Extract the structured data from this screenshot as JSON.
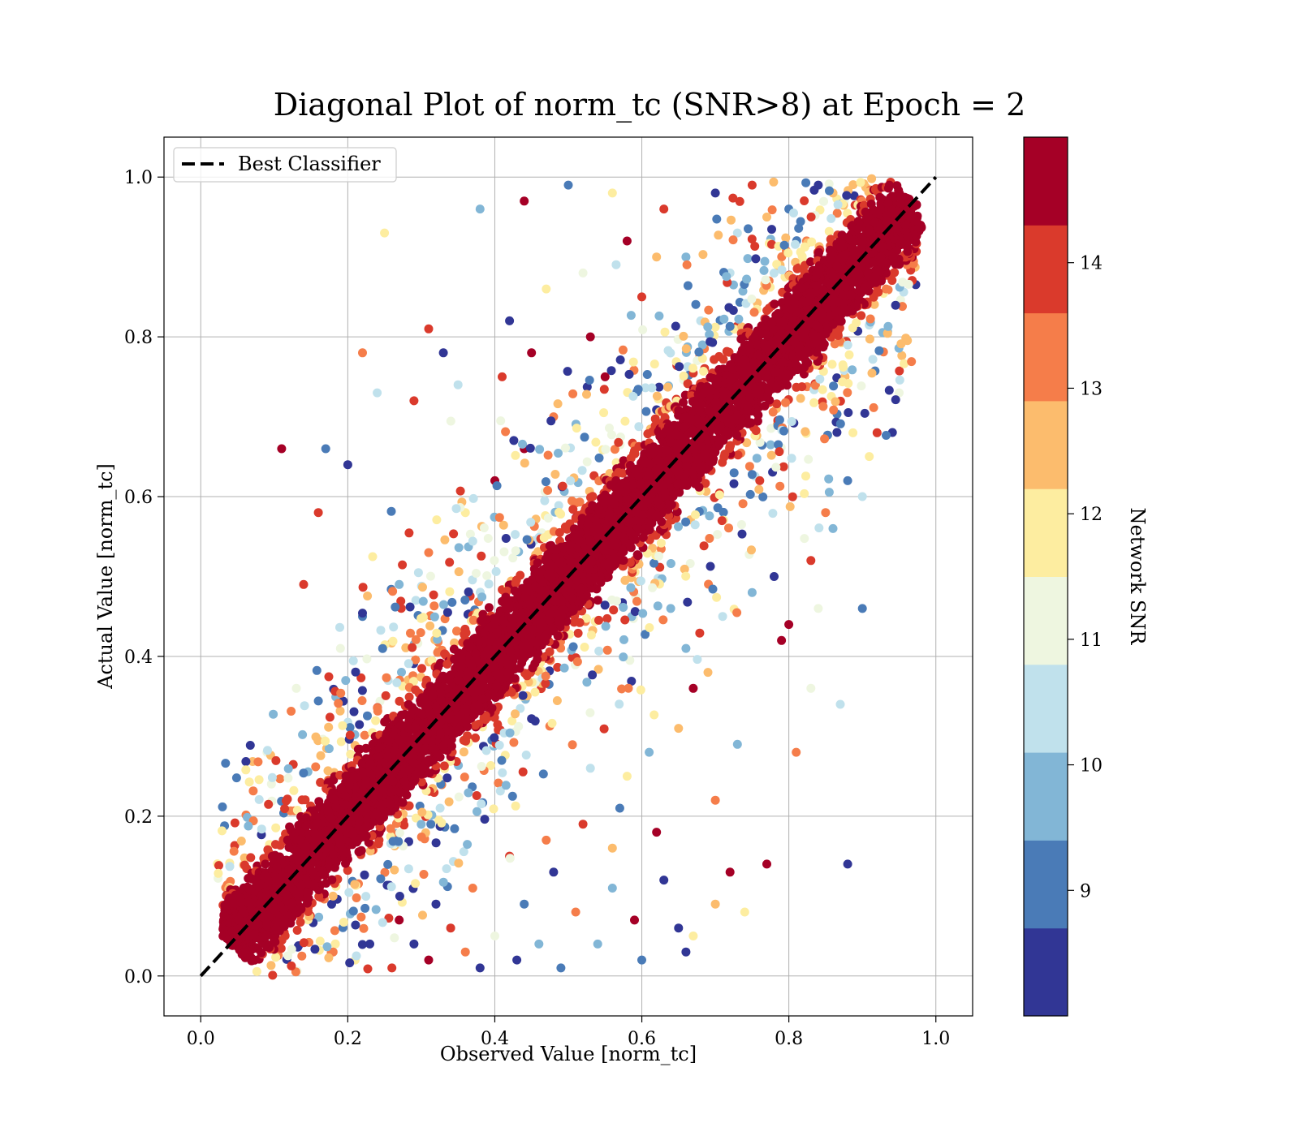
{
  "chart_data": {
    "type": "scatter",
    "title": "Diagonal Plot of norm_tc (SNR>8) at Epoch = 2",
    "xlabel": "Observed Value [norm_tc]",
    "ylabel": "Actual Value [norm_tc]",
    "xlim": [
      -0.05,
      1.05
    ],
    "ylim": [
      -0.05,
      1.05
    ],
    "xticks": [
      "0.0",
      "0.2",
      "0.4",
      "0.6",
      "0.8",
      "1.0"
    ],
    "yticks": [
      "0.0",
      "0.2",
      "0.4",
      "0.6",
      "0.8",
      "1.0"
    ],
    "grid": true,
    "legend": {
      "placement": "upper-left",
      "entries": [
        {
          "label": "Best Classifier",
          "style": "dashed",
          "color": "#000000"
        }
      ]
    },
    "reference_line": {
      "x": [
        0.0,
        1.0
      ],
      "y": [
        0.0,
        1.0
      ],
      "style": "dashed",
      "color": "#000000"
    },
    "colorbar": {
      "label": "Network SNR",
      "range": [
        8,
        15
      ],
      "ticks": [
        "9",
        "10",
        "11",
        "12",
        "13",
        "14"
      ],
      "tick_values": [
        9,
        10,
        11,
        12,
        13,
        14
      ],
      "colors": [
        "#313695",
        "#4575b4",
        "#74add1",
        "#abd9e9",
        "#e0f3f8",
        "#fee090",
        "#fdae61",
        "#f46d43",
        "#d73027",
        "#a50026"
      ],
      "displayed_colors": [
        "#313695",
        "#4a7bb7",
        "#82b6d6",
        "#c0e1ec",
        "#eef6e0",
        "#fdeda0",
        "#fcbc6d",
        "#f57d4a",
        "#da3a2c",
        "#a50026"
      ]
    },
    "series": [
      {
        "description_points": [
          [
            0.06,
            0.02
          ],
          [
            0.1,
            0.06
          ],
          [
            0.15,
            0.12
          ],
          [
            0.2,
            0.18
          ],
          [
            0.25,
            0.23
          ],
          [
            0.3,
            0.28
          ],
          [
            0.35,
            0.33
          ],
          [
            0.4,
            0.38
          ],
          [
            0.45,
            0.44
          ],
          [
            0.5,
            0.49
          ],
          [
            0.55,
            0.54
          ],
          [
            0.6,
            0.59
          ],
          [
            0.65,
            0.64
          ],
          [
            0.7,
            0.69
          ],
          [
            0.75,
            0.74
          ],
          [
            0.8,
            0.79
          ],
          [
            0.85,
            0.85
          ],
          [
            0.9,
            0.89
          ],
          [
            0.95,
            0.96
          ],
          [
            0.08,
            0.14
          ],
          [
            0.12,
            0.2
          ],
          [
            0.18,
            0.27
          ],
          [
            0.28,
            0.37
          ],
          [
            0.38,
            0.47
          ],
          [
            0.48,
            0.56
          ],
          [
            0.58,
            0.66
          ],
          [
            0.68,
            0.76
          ],
          [
            0.78,
            0.87
          ],
          [
            0.88,
            0.97
          ],
          [
            0.1,
            0.01
          ],
          [
            0.2,
            0.1
          ],
          [
            0.3,
            0.19
          ],
          [
            0.4,
            0.29
          ],
          [
            0.5,
            0.39
          ],
          [
            0.6,
            0.5
          ],
          [
            0.7,
            0.6
          ],
          [
            0.8,
            0.7
          ],
          [
            0.9,
            0.81
          ],
          [
            0.96,
            0.88
          ]
        ],
        "outliers": [
          [
            0.25,
            0.93
          ],
          [
            0.38,
            0.96
          ],
          [
            0.44,
            0.97
          ],
          [
            0.42,
            0.82
          ],
          [
            0.33,
            0.78
          ],
          [
            0.22,
            0.78
          ],
          [
            0.31,
            0.81
          ],
          [
            0.11,
            0.66
          ],
          [
            0.17,
            0.66
          ],
          [
            0.2,
            0.64
          ],
          [
            0.16,
            0.58
          ],
          [
            0.14,
            0.49
          ],
          [
            0.24,
            0.73
          ],
          [
            0.35,
            0.74
          ],
          [
            0.29,
            0.72
          ],
          [
            0.41,
            0.75
          ],
          [
            0.47,
            0.86
          ],
          [
            0.5,
            0.99
          ],
          [
            0.56,
            0.98
          ],
          [
            0.63,
            0.96
          ],
          [
            0.7,
            0.98
          ],
          [
            0.75,
            0.99
          ],
          [
            0.66,
            0.9
          ],
          [
            0.58,
            0.92
          ],
          [
            0.6,
            0.85
          ],
          [
            0.52,
            0.88
          ],
          [
            0.68,
            0.82
          ],
          [
            0.73,
            0.93
          ],
          [
            0.8,
            0.96
          ],
          [
            0.86,
            0.98
          ],
          [
            0.55,
            0.75
          ],
          [
            0.48,
            0.7
          ],
          [
            0.44,
            0.66
          ],
          [
            0.4,
            0.62
          ],
          [
            0.36,
            0.58
          ],
          [
            0.31,
            0.53
          ],
          [
            0.27,
            0.49
          ],
          [
            0.22,
            0.45
          ],
          [
            0.19,
            0.41
          ],
          [
            0.13,
            0.36
          ],
          [
            0.09,
            0.28
          ],
          [
            0.45,
            0.78
          ],
          [
            0.53,
            0.8
          ],
          [
            0.62,
            0.9
          ],
          [
            0.72,
            0.88
          ],
          [
            0.77,
            0.95
          ],
          [
            0.84,
            0.99
          ],
          [
            0.9,
            0.46
          ],
          [
            0.87,
            0.34
          ],
          [
            0.81,
            0.28
          ],
          [
            0.73,
            0.29
          ],
          [
            0.7,
            0.22
          ],
          [
            0.72,
            0.13
          ],
          [
            0.88,
            0.14
          ],
          [
            0.8,
            0.44
          ],
          [
            0.79,
            0.42
          ],
          [
            0.84,
            0.46
          ],
          [
            0.69,
            0.38
          ],
          [
            0.67,
            0.36
          ],
          [
            0.61,
            0.28
          ],
          [
            0.65,
            0.31
          ],
          [
            0.58,
            0.25
          ],
          [
            0.52,
            0.19
          ],
          [
            0.48,
            0.13
          ],
          [
            0.44,
            0.09
          ],
          [
            0.4,
            0.05
          ],
          [
            0.36,
            0.03
          ],
          [
            0.31,
            0.02
          ],
          [
            0.26,
            0.01
          ],
          [
            0.21,
            0.02
          ],
          [
            0.56,
            0.16
          ],
          [
            0.63,
            0.12
          ],
          [
            0.59,
            0.07
          ],
          [
            0.54,
            0.04
          ],
          [
            0.6,
            0.02
          ],
          [
            0.67,
            0.05
          ],
          [
            0.7,
            0.09
          ],
          [
            0.65,
            0.06
          ],
          [
            0.74,
            0.08
          ],
          [
            0.77,
            0.14
          ],
          [
            0.83,
            0.36
          ],
          [
            0.66,
            0.03
          ],
          [
            0.49,
            0.01
          ],
          [
            0.43,
            0.02
          ],
          [
            0.38,
            0.01
          ],
          [
            0.56,
            0.11
          ],
          [
            0.51,
            0.08
          ],
          [
            0.46,
            0.04
          ],
          [
            0.34,
            0.06
          ],
          [
            0.29,
            0.04
          ],
          [
            0.23,
            0.04
          ],
          [
            0.18,
            0.03
          ],
          [
            0.62,
            0.18
          ],
          [
            0.57,
            0.21
          ],
          [
            0.53,
            0.26
          ],
          [
            0.47,
            0.17
          ],
          [
            0.42,
            0.15
          ],
          [
            0.37,
            0.11
          ],
          [
            0.32,
            0.09
          ],
          [
            0.27,
            0.07
          ],
          [
            0.75,
            0.48
          ],
          [
            0.71,
            0.45
          ],
          [
            0.66,
            0.41
          ],
          [
            0.86,
            0.56
          ],
          [
            0.83,
            0.52
          ],
          [
            0.88,
            0.62
          ],
          [
            0.92,
            0.68
          ],
          [
            0.95,
            0.73
          ],
          [
            0.9,
            0.6
          ],
          [
            0.78,
            0.5
          ],
          [
            0.85,
            0.58
          ]
        ]
      }
    ]
  }
}
